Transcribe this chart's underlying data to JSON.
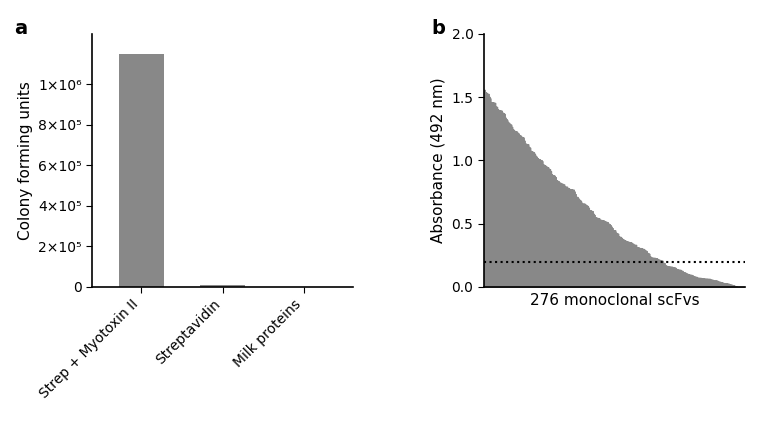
{
  "panel_a": {
    "categories": [
      "Strep + Myotoxin II",
      "Streptavidin",
      "Milk proteins"
    ],
    "values": [
      1150000,
      8000,
      0
    ],
    "bar_color": "#888888",
    "ylabel": "Colony forming units",
    "yticks": [
      0,
      200000,
      400000,
      600000,
      800000,
      1000000
    ],
    "ytick_labels": [
      "0",
      "2×10⁵",
      "4×10⁵",
      "6×10⁵",
      "8×10⁵",
      "1×10⁶"
    ],
    "ylim": [
      0,
      1250000
    ],
    "panel_label": "a"
  },
  "panel_b": {
    "n_points": 276,
    "ylabel": "Absorbance (492 nm)",
    "xlabel": "276 monoclonal scFvs",
    "yticks": [
      0.0,
      0.5,
      1.0,
      1.5,
      2.0
    ],
    "ylim": [
      0,
      2.0
    ],
    "threshold": 0.2,
    "fill_color": "#888888",
    "panel_label": "b",
    "curve_seed": 7
  },
  "background_color": "#ffffff",
  "label_fontsize": 11,
  "tick_fontsize": 10,
  "panel_label_fontsize": 14
}
